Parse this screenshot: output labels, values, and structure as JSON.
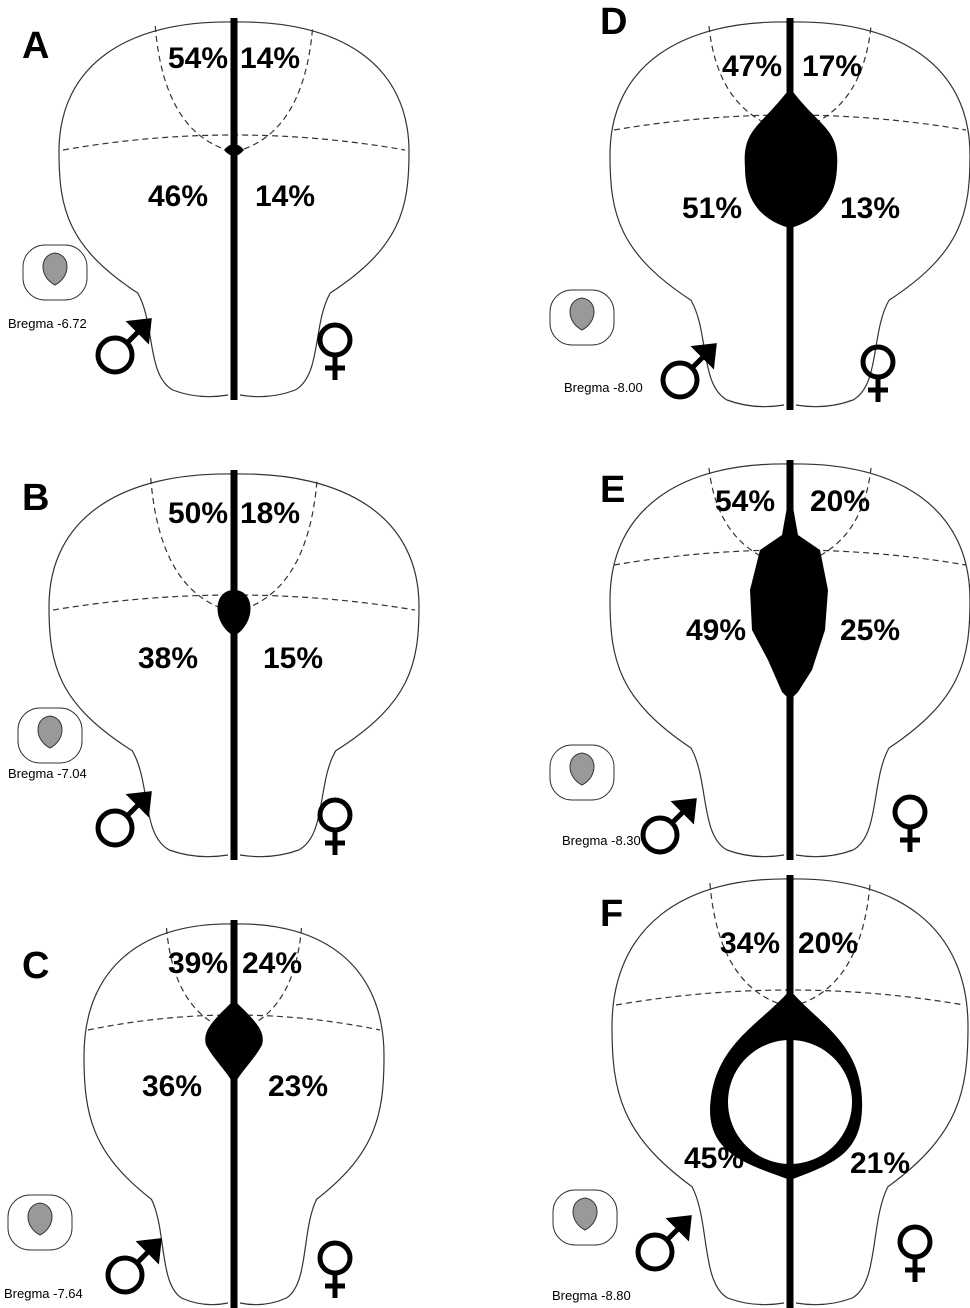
{
  "panels": [
    {
      "letter": "A",
      "bregma": "Bregma -6.72",
      "upper_left": "54%",
      "upper_right": "14%",
      "lower_left": "46%",
      "lower_right": "14%"
    },
    {
      "letter": "B",
      "bregma": "Bregma -7.04",
      "upper_left": "50%",
      "upper_right": "18%",
      "lower_left": "38%",
      "lower_right": "15%"
    },
    {
      "letter": "C",
      "bregma": "Bregma -7.64",
      "upper_left": "39%",
      "upper_right": "24%",
      "lower_left": "36%",
      "lower_right": "23%"
    },
    {
      "letter": "D",
      "bregma": "Bregma -8.00",
      "upper_left": "47%",
      "upper_right": "17%",
      "lower_left": "51%",
      "lower_right": "13%"
    },
    {
      "letter": "E",
      "bregma": "Bregma -8.30",
      "upper_left": "54%",
      "upper_right": "20%",
      "lower_left": "49%",
      "lower_right": "25%"
    },
    {
      "letter": "F",
      "bregma": "Bregma -8.80",
      "upper_left": "34%",
      "upper_right": "20%",
      "lower_left": "45%",
      "lower_right": "21%"
    }
  ]
}
